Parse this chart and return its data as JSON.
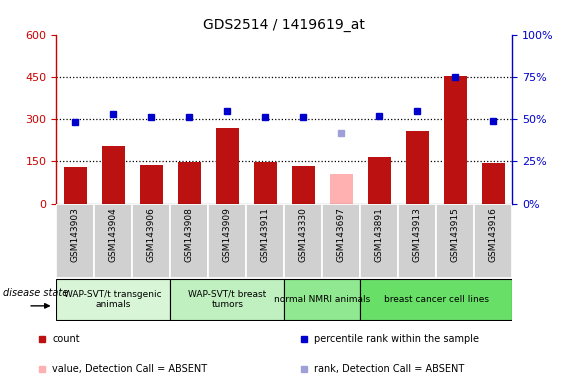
{
  "title": "GDS2514 / 1419619_at",
  "samples": [
    "GSM143903",
    "GSM143904",
    "GSM143906",
    "GSM143908",
    "GSM143909",
    "GSM143911",
    "GSM143330",
    "GSM143697",
    "GSM143891",
    "GSM143913",
    "GSM143915",
    "GSM143916"
  ],
  "count_values": [
    128,
    205,
    138,
    148,
    268,
    148,
    135,
    null,
    165,
    258,
    452,
    145
  ],
  "count_absent": [
    null,
    null,
    null,
    null,
    null,
    null,
    null,
    105,
    null,
    null,
    null,
    null
  ],
  "rank_pct": [
    48,
    53,
    51,
    51,
    55,
    51,
    51,
    null,
    52,
    55,
    75,
    49
  ],
  "rank_pct_absent": [
    null,
    null,
    null,
    null,
    null,
    null,
    null,
    42,
    null,
    null,
    null,
    null
  ],
  "groups": [
    {
      "label": "WAP-SVT/t transgenic\nanimals",
      "start": 0,
      "end": 3,
      "color": "#d8f5d8"
    },
    {
      "label": "WAP-SVT/t breast\ntumors",
      "start": 3,
      "end": 6,
      "color": "#c0f0c0"
    },
    {
      "label": "normal NMRI animals",
      "start": 6,
      "end": 8,
      "color": "#90e890"
    },
    {
      "label": "breast cancer cell lines",
      "start": 8,
      "end": 12,
      "color": "#68e068"
    }
  ],
  "ylim_left": [
    0,
    600
  ],
  "ylim_right": [
    0,
    100
  ],
  "yticks_left": [
    0,
    150,
    300,
    450,
    600
  ],
  "ytick_labels_left": [
    "0",
    "150",
    "300",
    "450",
    "600"
  ],
  "yticks_right": [
    0,
    25,
    50,
    75,
    100
  ],
  "ytick_labels_right": [
    "0%",
    "25%",
    "50%",
    "75%",
    "100%"
  ],
  "bar_color": "#bb1111",
  "bar_absent_color": "#ffb0b0",
  "dot_color": "#0000cc",
  "dot_absent_color": "#a0a0d8",
  "cell_bg": "#d0d0d0",
  "legend_items": [
    {
      "label": "count",
      "color": "#bb1111"
    },
    {
      "label": "percentile rank within the sample",
      "color": "#0000cc"
    },
    {
      "label": "value, Detection Call = ABSENT",
      "color": "#ffb0b0"
    },
    {
      "label": "rank, Detection Call = ABSENT",
      "color": "#a0a0d8"
    }
  ]
}
